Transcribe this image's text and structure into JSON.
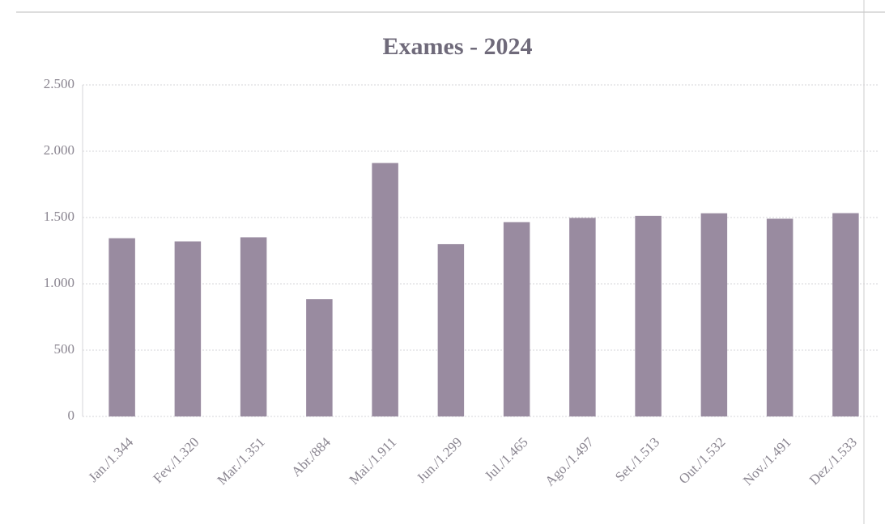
{
  "chart_data": {
    "type": "bar",
    "title": "Exames - 2024",
    "categories": [
      "Jan./1.344",
      "Fev./1.320",
      "Mar./1.351",
      "Abr./884",
      "Mai./1.911",
      "Jun./1.299",
      "Jul./1.465",
      "Ago./1.497",
      "Set./1.513",
      "Out./1.532",
      "Nov./1.491",
      "Dez./1.533"
    ],
    "values": [
      1344,
      1320,
      1351,
      884,
      1911,
      1299,
      1465,
      1497,
      1513,
      1532,
      1491,
      1533
    ],
    "color": "#998ba0",
    "ylim": [
      0,
      2500
    ],
    "yticks": [
      0,
      500,
      {
        "value": 1000,
        "label": "1.000"
      },
      {
        "value": 1500,
        "label": "1.500"
      },
      {
        "value": 2000,
        "label": "2.000"
      },
      {
        "value": 2500,
        "label": "2.500"
      }
    ],
    "grid": true
  }
}
